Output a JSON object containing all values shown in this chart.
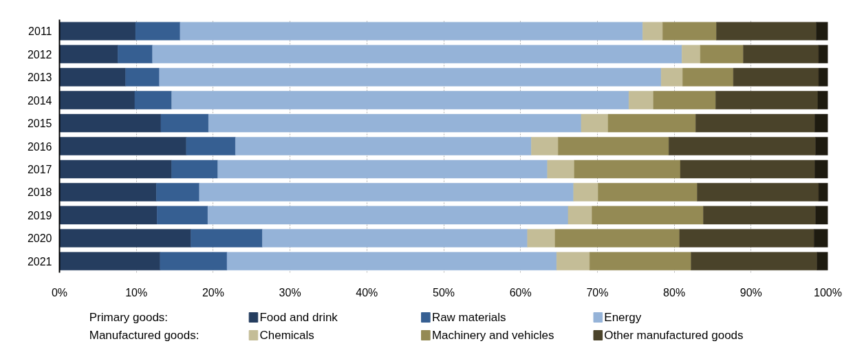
{
  "chart_data": {
    "type": "bar",
    "orientation": "horizontal",
    "stacked": true,
    "categories": [
      "2011",
      "2012",
      "2013",
      "2014",
      "2015",
      "2016",
      "2017",
      "2018",
      "2019",
      "2020",
      "2021"
    ],
    "series": [
      {
        "name": "Food and drink",
        "color": "#253d5f",
        "values": [
          9.9,
          7.6,
          8.6,
          9.8,
          13.2,
          16.5,
          14.6,
          12.6,
          12.7,
          17.1,
          13.1
        ]
      },
      {
        "name": "Raw materials",
        "color": "#365f92",
        "values": [
          5.8,
          4.5,
          4.4,
          4.8,
          6.2,
          6.4,
          6.0,
          5.6,
          6.6,
          9.3,
          8.7
        ]
      },
      {
        "name": "Energy",
        "color": "#95b3d8",
        "values": [
          60.2,
          68.9,
          65.3,
          59.5,
          48.5,
          38.5,
          42.9,
          48.7,
          46.9,
          34.5,
          42.9
        ]
      },
      {
        "name": "Chemicals",
        "color": "#c4bd97",
        "values": [
          2.6,
          2.4,
          2.8,
          3.2,
          3.5,
          3.5,
          3.5,
          3.2,
          3.1,
          3.6,
          4.3
        ]
      },
      {
        "name": "Machinery and vehicles",
        "color": "#948a54",
        "values": [
          7.0,
          5.6,
          6.6,
          8.1,
          11.4,
          14.4,
          13.8,
          12.9,
          14.5,
          16.2,
          13.2
        ]
      },
      {
        "name": "Other manufactured goods",
        "color": "#4a432a",
        "values": [
          13.0,
          9.8,
          11.1,
          13.3,
          15.5,
          19.1,
          17.5,
          15.8,
          14.6,
          17.5,
          16.4
        ]
      },
      {
        "color": "#1e1b10",
        "values": [
          1.5,
          1.2,
          1.2,
          1.3,
          1.7,
          1.6,
          1.7,
          1.2,
          1.6,
          1.8,
          1.4
        ]
      }
    ],
    "xlim": [
      0,
      100
    ],
    "xticks": [
      {
        "value": 0,
        "label": "0%"
      },
      {
        "value": 10,
        "label": "10%"
      },
      {
        "value": 20,
        "label": "20%"
      },
      {
        "value": 30,
        "label": "30%"
      },
      {
        "value": 40,
        "label": "40%"
      },
      {
        "value": 50,
        "label": "50%"
      },
      {
        "value": 60,
        "label": "60%"
      },
      {
        "value": 70,
        "label": "70%"
      },
      {
        "value": 80,
        "label": "80%"
      },
      {
        "value": 90,
        "label": "90%"
      },
      {
        "value": 100,
        "label": "100%"
      }
    ],
    "grid": "x",
    "legend": "bottom",
    "annotations": [
      "Primary goods:",
      "Manufactured goods:"
    ]
  }
}
